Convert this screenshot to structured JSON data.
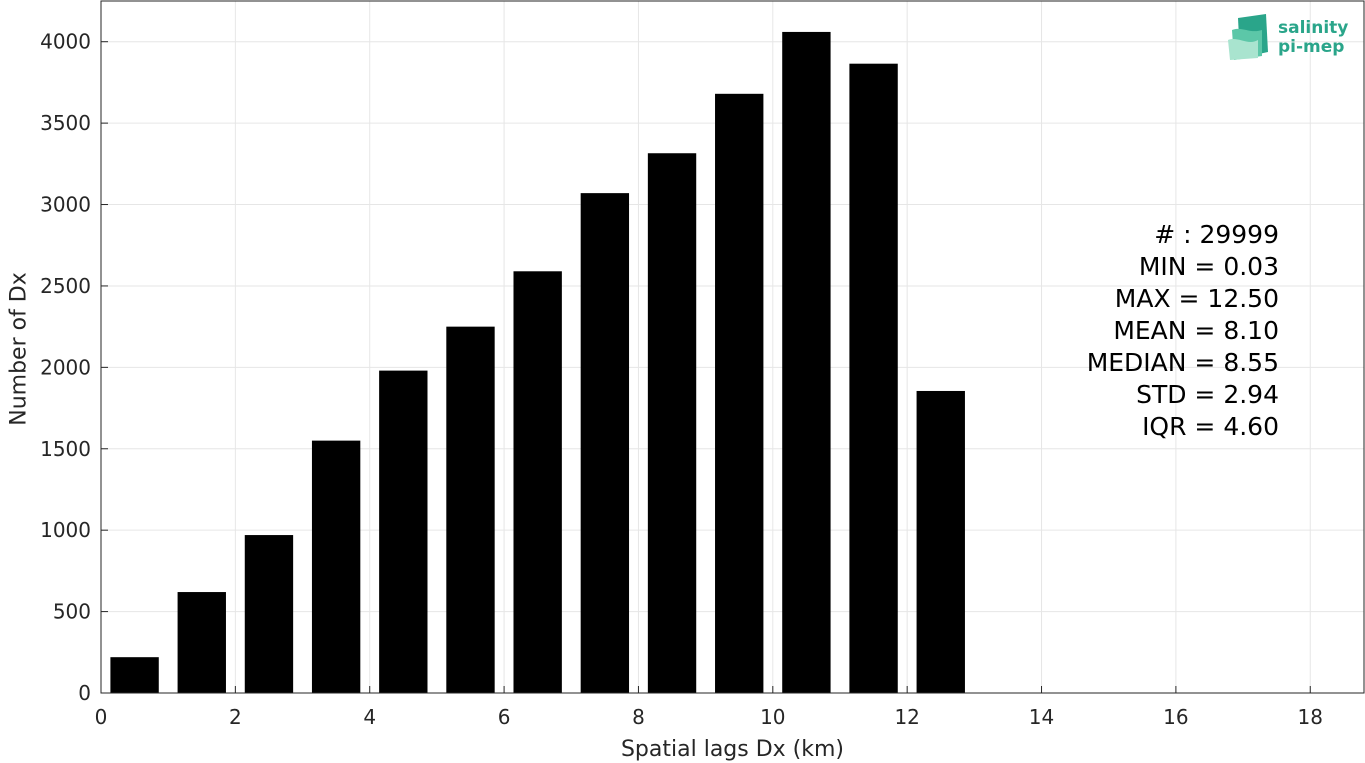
{
  "chart_data": {
    "type": "bar",
    "x_centers": [
      0.5,
      1.5,
      2.5,
      3.5,
      4.5,
      5.5,
      6.5,
      7.5,
      8.5,
      9.5,
      10.5,
      11.5,
      12.5
    ],
    "values": [
      220,
      620,
      970,
      1550,
      1980,
      2250,
      2590,
      3070,
      3315,
      3680,
      4060,
      3865,
      1855
    ],
    "bar_color": "#000000",
    "xlabel": "Spatial lags Dx (km)",
    "ylabel": "Number of Dx",
    "xlim": [
      0,
      18.8
    ],
    "ylim": [
      0,
      4250
    ],
    "xticks": [
      0,
      2,
      4,
      6,
      8,
      10,
      12,
      14,
      16,
      18
    ],
    "yticks": [
      0,
      500,
      1000,
      1500,
      2000,
      2500,
      3000,
      3500,
      4000
    ],
    "grid": true
  },
  "stats": {
    "lines": [
      "# : 29999",
      "MIN = 0.03",
      "MAX =  12.50",
      "MEAN = 8.10",
      "MEDIAN = 8.55",
      "STD = 2.94",
      "IQR = 4.60"
    ]
  },
  "logo": {
    "line1": "salinity",
    "line2": "pi-mep",
    "color": "#2aa58a"
  }
}
